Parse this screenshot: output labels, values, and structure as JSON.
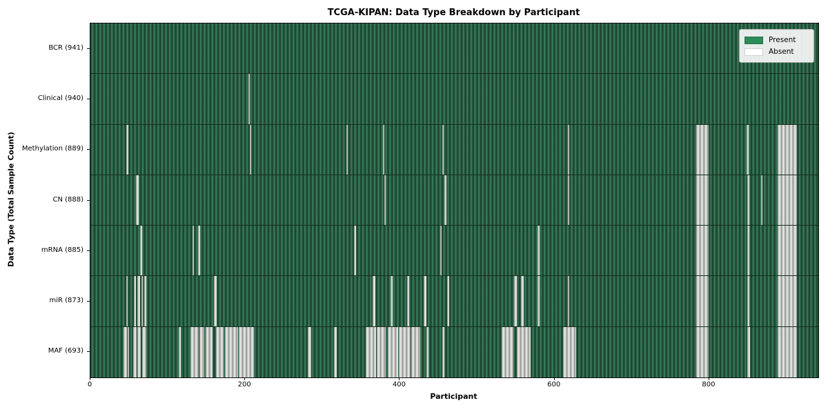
{
  "figure": {
    "title": "TCGA-KIPAN: Data Type Breakdown by Participant",
    "xlabel": "Participant",
    "ylabel": "Data Type (Total Sample Count)"
  },
  "legend": {
    "present_label": "Present",
    "absent_label": "Absent",
    "present_color": "#2e8b57",
    "absent_color": "#ffffff"
  },
  "chart_data": {
    "type": "heatmap",
    "title": "TCGA-KIPAN: Data Type Breakdown by Participant",
    "xlabel": "Participant",
    "ylabel": "Data Type (Total Sample Count)",
    "legend_entries": [
      "Present",
      "Absent"
    ],
    "legend_position": "upper right",
    "present_color": "#2e8b57",
    "absent_color": "#ffffff",
    "grid": false,
    "n_participants": 941,
    "x_ticks": [
      0,
      200,
      400,
      600,
      800
    ],
    "rows": [
      {
        "label": "BCR",
        "count": 941,
        "absent_ranges": []
      },
      {
        "label": "Clinical",
        "count": 940,
        "absent_ranges": [
          [
            204,
            205
          ]
        ]
      },
      {
        "label": "Methylation",
        "count": 889,
        "absent_ranges": [
          [
            46,
            48
          ],
          [
            206,
            207
          ],
          [
            331,
            332
          ],
          [
            378,
            379
          ],
          [
            455,
            456
          ],
          [
            617,
            618
          ],
          [
            783,
            798
          ],
          [
            848,
            850
          ],
          [
            888,
            912
          ]
        ]
      },
      {
        "label": "CN",
        "count": 888,
        "absent_ranges": [
          [
            59,
            61
          ],
          [
            380,
            381
          ],
          [
            458,
            459
          ],
          [
            617,
            618
          ],
          [
            783,
            798
          ],
          [
            849,
            851
          ],
          [
            867,
            868
          ],
          [
            888,
            912
          ]
        ]
      },
      {
        "label": "mRNA",
        "count": 885,
        "absent_ranges": [
          [
            64,
            66
          ],
          [
            132,
            133
          ],
          [
            139,
            141
          ],
          [
            341,
            342
          ],
          [
            452,
            453
          ],
          [
            578,
            580
          ],
          [
            783,
            798
          ],
          [
            849,
            851
          ],
          [
            888,
            912
          ]
        ]
      },
      {
        "label": "miR",
        "count": 873,
        "absent_ranges": [
          [
            46,
            47
          ],
          [
            56,
            58
          ],
          [
            61,
            63
          ],
          [
            66,
            67
          ],
          [
            70,
            71
          ],
          [
            160,
            162
          ],
          [
            365,
            367
          ],
          [
            388,
            390
          ],
          [
            409,
            411
          ],
          [
            431,
            433
          ],
          [
            461,
            463
          ],
          [
            548,
            550
          ],
          [
            557,
            559
          ],
          [
            578,
            580
          ],
          [
            617,
            618
          ],
          [
            783,
            798
          ],
          [
            849,
            851
          ],
          [
            888,
            912
          ]
        ]
      },
      {
        "label": "MAF",
        "count": 693,
        "absent_ranges": [
          [
            43,
            46
          ],
          [
            48,
            49
          ],
          [
            55,
            59
          ],
          [
            61,
            64
          ],
          [
            67,
            71
          ],
          [
            114,
            116
          ],
          [
            129,
            139
          ],
          [
            141,
            146
          ],
          [
            149,
            157
          ],
          [
            162,
            171
          ],
          [
            174,
            190
          ],
          [
            192,
            210
          ],
          [
            281,
            284
          ],
          [
            315,
            317
          ],
          [
            356,
            368
          ],
          [
            370,
            381
          ],
          [
            384,
            397
          ],
          [
            399,
            413
          ],
          [
            415,
            425
          ],
          [
            434,
            436
          ],
          [
            455,
            457
          ],
          [
            532,
            546
          ],
          [
            551,
            568
          ],
          [
            611,
            627
          ],
          [
            783,
            798
          ],
          [
            849,
            852
          ],
          [
            888,
            912
          ]
        ]
      }
    ]
  }
}
